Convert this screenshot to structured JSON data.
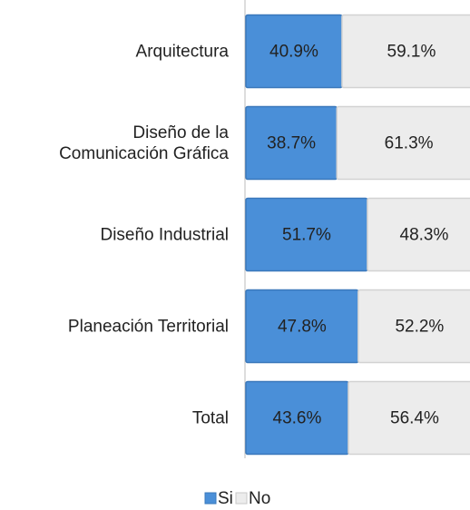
{
  "chart_data": {
    "type": "stacked-bar-horizontal",
    "categories": [
      "Arquitectura",
      "Diseño de la\nComunicación Gráfica",
      "Diseño Industrial",
      "Planeación Territorial",
      "Total"
    ],
    "series": [
      {
        "name": "Si",
        "color": "#4a8fd8",
        "values": [
          40.9,
          38.7,
          51.7,
          47.8,
          43.6
        ],
        "value_labels": [
          "40.9%",
          "38.7%",
          "51.7%",
          "47.8%",
          "43.6%"
        ]
      },
      {
        "name": "No",
        "color": "#ececec",
        "values": [
          59.1,
          61.3,
          48.3,
          52.2,
          56.4
        ],
        "value_labels": [
          "59.1%",
          "61.3%",
          "48.3%",
          "52.2%",
          "56.4%"
        ]
      }
    ],
    "xlim": [
      0,
      100
    ],
    "legend": "bottom"
  }
}
